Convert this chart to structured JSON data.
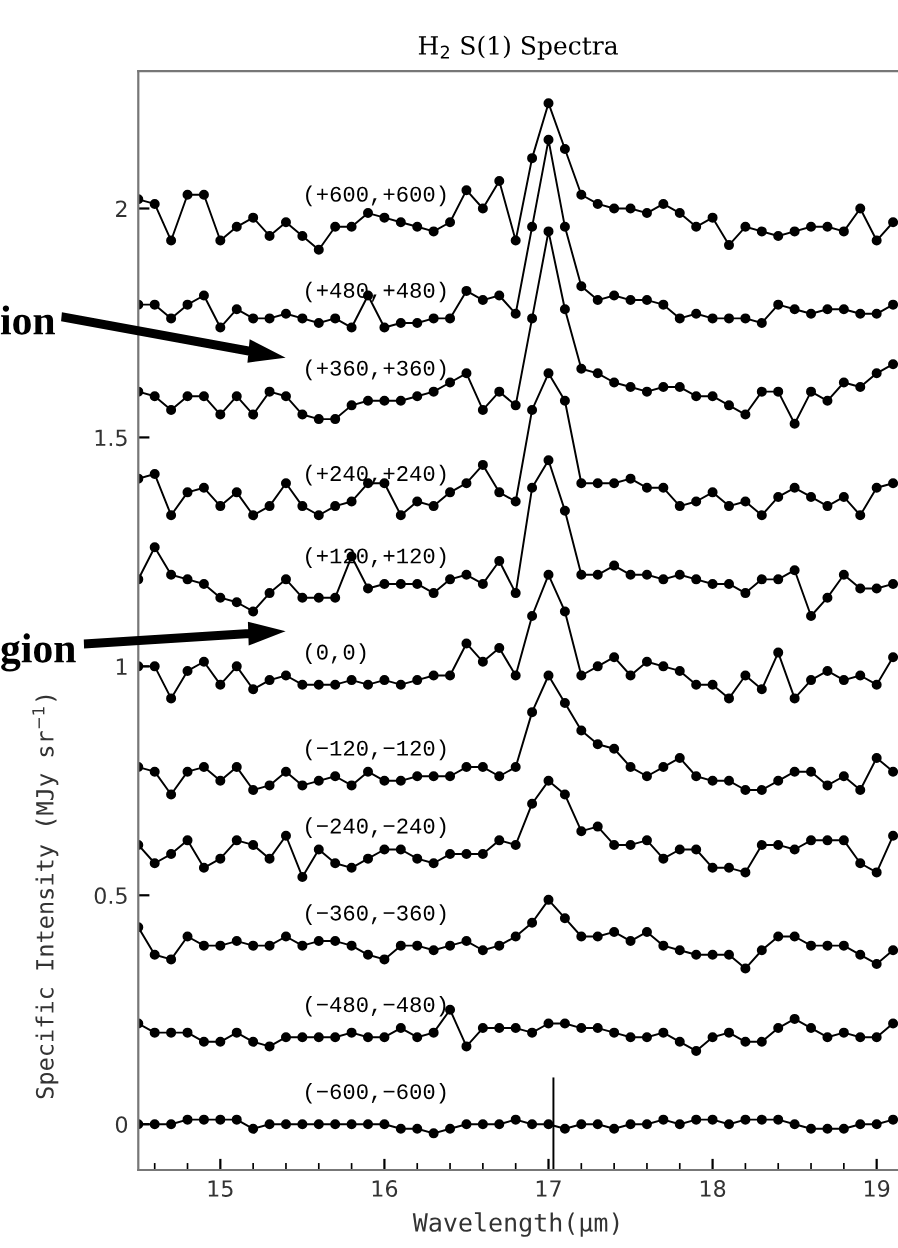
{
  "chart_data": {
    "type": "line",
    "title": "H$_{2}$ S(1) Spectra",
    "xlabel": "Wavelength(μm)",
    "ylabel": "Specific Intensity (MJy sr$^{−1}$)",
    "x": [
      14.5,
      14.6,
      14.7,
      14.8,
      14.9,
      15.0,
      15.1,
      15.2,
      15.3,
      15.4,
      15.5,
      15.6,
      15.7,
      15.8,
      15.9,
      16.0,
      16.1,
      16.2,
      16.3,
      16.4,
      16.5,
      16.6,
      16.7,
      16.8,
      16.9,
      17.0,
      17.1,
      17.2,
      17.3,
      17.4,
      17.5,
      17.6,
      17.7,
      17.8,
      17.9,
      18.0,
      18.1,
      18.2,
      18.3,
      18.4,
      18.5,
      18.6,
      18.7,
      18.8,
      18.9,
      19.0,
      19.1
    ],
    "xlim": [
      14.5,
      19.13
    ],
    "xticks": [
      15,
      16,
      17,
      18,
      19
    ],
    "ylim": [
      -0.1,
      2.3
    ],
    "yticks": [
      0,
      0.5,
      1,
      1.5,
      2
    ],
    "marker": "circle",
    "line_style": "solid",
    "series": [
      {
        "name": "(+600,+600)",
        "color": "#000000",
        "values": [
          2.02,
          2.01,
          1.93,
          2.03,
          2.03,
          1.93,
          1.96,
          1.98,
          1.94,
          1.97,
          1.94,
          1.91,
          1.96,
          1.96,
          1.99,
          1.98,
          1.97,
          1.96,
          1.95,
          1.97,
          2.04,
          2.0,
          2.06,
          1.93,
          2.11,
          2.23,
          2.13,
          2.03,
          2.01,
          2.0,
          2.0,
          1.99,
          2.01,
          1.99,
          1.96,
          1.98,
          1.92,
          1.96,
          1.95,
          1.94,
          1.95,
          1.96,
          1.96,
          1.95,
          2.0,
          1.93,
          1.97
        ]
      },
      {
        "name": "(+480,+480)",
        "color": "#000000",
        "values": [
          1.79,
          1.79,
          1.76,
          1.79,
          1.81,
          1.74,
          1.78,
          1.76,
          1.76,
          1.77,
          1.76,
          1.75,
          1.76,
          1.74,
          1.81,
          1.74,
          1.75,
          1.75,
          1.76,
          1.76,
          1.82,
          1.8,
          1.81,
          1.77,
          1.96,
          2.15,
          1.96,
          1.83,
          1.8,
          1.81,
          1.8,
          1.8,
          1.79,
          1.76,
          1.77,
          1.76,
          1.76,
          1.76,
          1.75,
          1.79,
          1.78,
          1.77,
          1.78,
          1.78,
          1.77,
          1.77,
          1.79
        ]
      },
      {
        "name": "(+360,+360)",
        "color": "#000000",
        "values": [
          1.6,
          1.59,
          1.56,
          1.59,
          1.59,
          1.55,
          1.59,
          1.55,
          1.6,
          1.59,
          1.55,
          1.54,
          1.54,
          1.57,
          1.58,
          1.58,
          1.58,
          1.59,
          1.6,
          1.62,
          1.64,
          1.56,
          1.6,
          1.57,
          1.76,
          1.95,
          1.78,
          1.65,
          1.64,
          1.62,
          1.61,
          1.6,
          1.61,
          1.61,
          1.59,
          1.59,
          1.57,
          1.55,
          1.6,
          1.6,
          1.53,
          1.6,
          1.58,
          1.62,
          1.61,
          1.64,
          1.66
        ]
      },
      {
        "name": "(+240,+240)",
        "color": "#000000",
        "values": [
          1.41,
          1.42,
          1.33,
          1.38,
          1.39,
          1.35,
          1.38,
          1.33,
          1.35,
          1.4,
          1.35,
          1.33,
          1.35,
          1.36,
          1.4,
          1.4,
          1.33,
          1.36,
          1.35,
          1.38,
          1.4,
          1.44,
          1.38,
          1.36,
          1.56,
          1.64,
          1.58,
          1.4,
          1.4,
          1.4,
          1.41,
          1.39,
          1.39,
          1.35,
          1.36,
          1.38,
          1.35,
          1.36,
          1.33,
          1.37,
          1.39,
          1.37,
          1.35,
          1.37,
          1.33,
          1.39,
          1.4
        ]
      },
      {
        "name": "(+120,+120)",
        "color": "#000000",
        "values": [
          1.19,
          1.26,
          1.2,
          1.19,
          1.18,
          1.15,
          1.14,
          1.12,
          1.16,
          1.19,
          1.15,
          1.15,
          1.15,
          1.24,
          1.17,
          1.18,
          1.18,
          1.18,
          1.16,
          1.19,
          1.2,
          1.18,
          1.23,
          1.16,
          1.39,
          1.45,
          1.34,
          1.2,
          1.2,
          1.22,
          1.2,
          1.2,
          1.19,
          1.2,
          1.19,
          1.18,
          1.18,
          1.16,
          1.19,
          1.19,
          1.21,
          1.11,
          1.15,
          1.2,
          1.17,
          1.17,
          1.18
        ]
      },
      {
        "name": "(0,0)",
        "color": "#000000",
        "values": [
          1.0,
          1.0,
          0.93,
          0.99,
          1.01,
          0.96,
          1.0,
          0.95,
          0.97,
          0.98,
          0.96,
          0.96,
          0.96,
          0.97,
          0.96,
          0.97,
          0.96,
          0.97,
          0.98,
          0.98,
          1.05,
          1.01,
          1.04,
          0.98,
          1.11,
          1.2,
          1.12,
          0.98,
          1.0,
          1.02,
          0.98,
          1.01,
          1.0,
          0.99,
          0.96,
          0.96,
          0.93,
          0.98,
          0.95,
          1.03,
          0.93,
          0.97,
          0.99,
          0.97,
          0.98,
          0.96,
          1.02
        ]
      },
      {
        "name": "(−120,−120)",
        "color": "#000000",
        "values": [
          0.78,
          0.77,
          0.72,
          0.77,
          0.78,
          0.75,
          0.78,
          0.73,
          0.74,
          0.77,
          0.74,
          0.75,
          0.76,
          0.74,
          0.77,
          0.75,
          0.75,
          0.76,
          0.76,
          0.76,
          0.78,
          0.78,
          0.76,
          0.78,
          0.9,
          0.98,
          0.92,
          0.86,
          0.83,
          0.82,
          0.78,
          0.76,
          0.78,
          0.8,
          0.76,
          0.75,
          0.75,
          0.73,
          0.73,
          0.75,
          0.77,
          0.77,
          0.74,
          0.76,
          0.73,
          0.8,
          0.77
        ]
      },
      {
        "name": "(−240,−240)",
        "color": "#000000",
        "values": [
          0.61,
          0.57,
          0.59,
          0.62,
          0.56,
          0.58,
          0.62,
          0.61,
          0.58,
          0.63,
          0.54,
          0.6,
          0.57,
          0.56,
          0.58,
          0.6,
          0.6,
          0.58,
          0.57,
          0.59,
          0.59,
          0.59,
          0.62,
          0.61,
          0.7,
          0.75,
          0.72,
          0.64,
          0.65,
          0.61,
          0.61,
          0.62,
          0.58,
          0.6,
          0.6,
          0.56,
          0.56,
          0.55,
          0.61,
          0.61,
          0.6,
          0.62,
          0.62,
          0.62,
          0.57,
          0.55,
          0.63
        ]
      },
      {
        "name": "(−360,−360)",
        "color": "#000000",
        "values": [
          0.43,
          0.37,
          0.36,
          0.41,
          0.39,
          0.39,
          0.4,
          0.39,
          0.39,
          0.41,
          0.39,
          0.4,
          0.4,
          0.39,
          0.37,
          0.36,
          0.39,
          0.39,
          0.38,
          0.39,
          0.4,
          0.38,
          0.39,
          0.41,
          0.44,
          0.49,
          0.45,
          0.41,
          0.41,
          0.42,
          0.4,
          0.42,
          0.39,
          0.38,
          0.37,
          0.37,
          0.37,
          0.34,
          0.38,
          0.41,
          0.41,
          0.39,
          0.39,
          0.39,
          0.37,
          0.35,
          0.38
        ]
      },
      {
        "name": "(−480,−480)",
        "color": "#000000",
        "values": [
          0.22,
          0.2,
          0.2,
          0.2,
          0.18,
          0.18,
          0.2,
          0.18,
          0.17,
          0.19,
          0.19,
          0.19,
          0.19,
          0.2,
          0.19,
          0.19,
          0.21,
          0.19,
          0.2,
          0.25,
          0.17,
          0.21,
          0.21,
          0.21,
          0.2,
          0.22,
          0.22,
          0.21,
          0.21,
          0.2,
          0.19,
          0.19,
          0.2,
          0.18,
          0.16,
          0.19,
          0.2,
          0.18,
          0.18,
          0.21,
          0.23,
          0.21,
          0.19,
          0.2,
          0.19,
          0.19,
          0.22
        ]
      },
      {
        "name": "(−600,−600)",
        "color": "#000000",
        "values": [
          0.0,
          0.0,
          0.0,
          0.01,
          0.01,
          0.01,
          0.01,
          -0.01,
          0.0,
          0.0,
          0.0,
          0.0,
          0.0,
          0.0,
          0.0,
          0.0,
          -0.01,
          -0.01,
          -0.02,
          -0.01,
          0.0,
          0.0,
          0.0,
          0.01,
          0.0,
          0.0,
          -0.01,
          0.0,
          0.0,
          -0.01,
          0.0,
          0.0,
          0.01,
          0.0,
          0.01,
          0.01,
          0.0,
          0.01,
          0.01,
          0.01,
          0.0,
          -0.01,
          -0.01,
          -0.01,
          0.0,
          0.0,
          0.01
        ]
      },
      {
        "color": "#000000",
        "x": [
          17.03,
          17.03
        ],
        "values": [
          -0.1,
          0.1
        ],
        "marker": "none"
      }
    ],
    "annotations": [
      "ion",
      "gion"
    ]
  }
}
